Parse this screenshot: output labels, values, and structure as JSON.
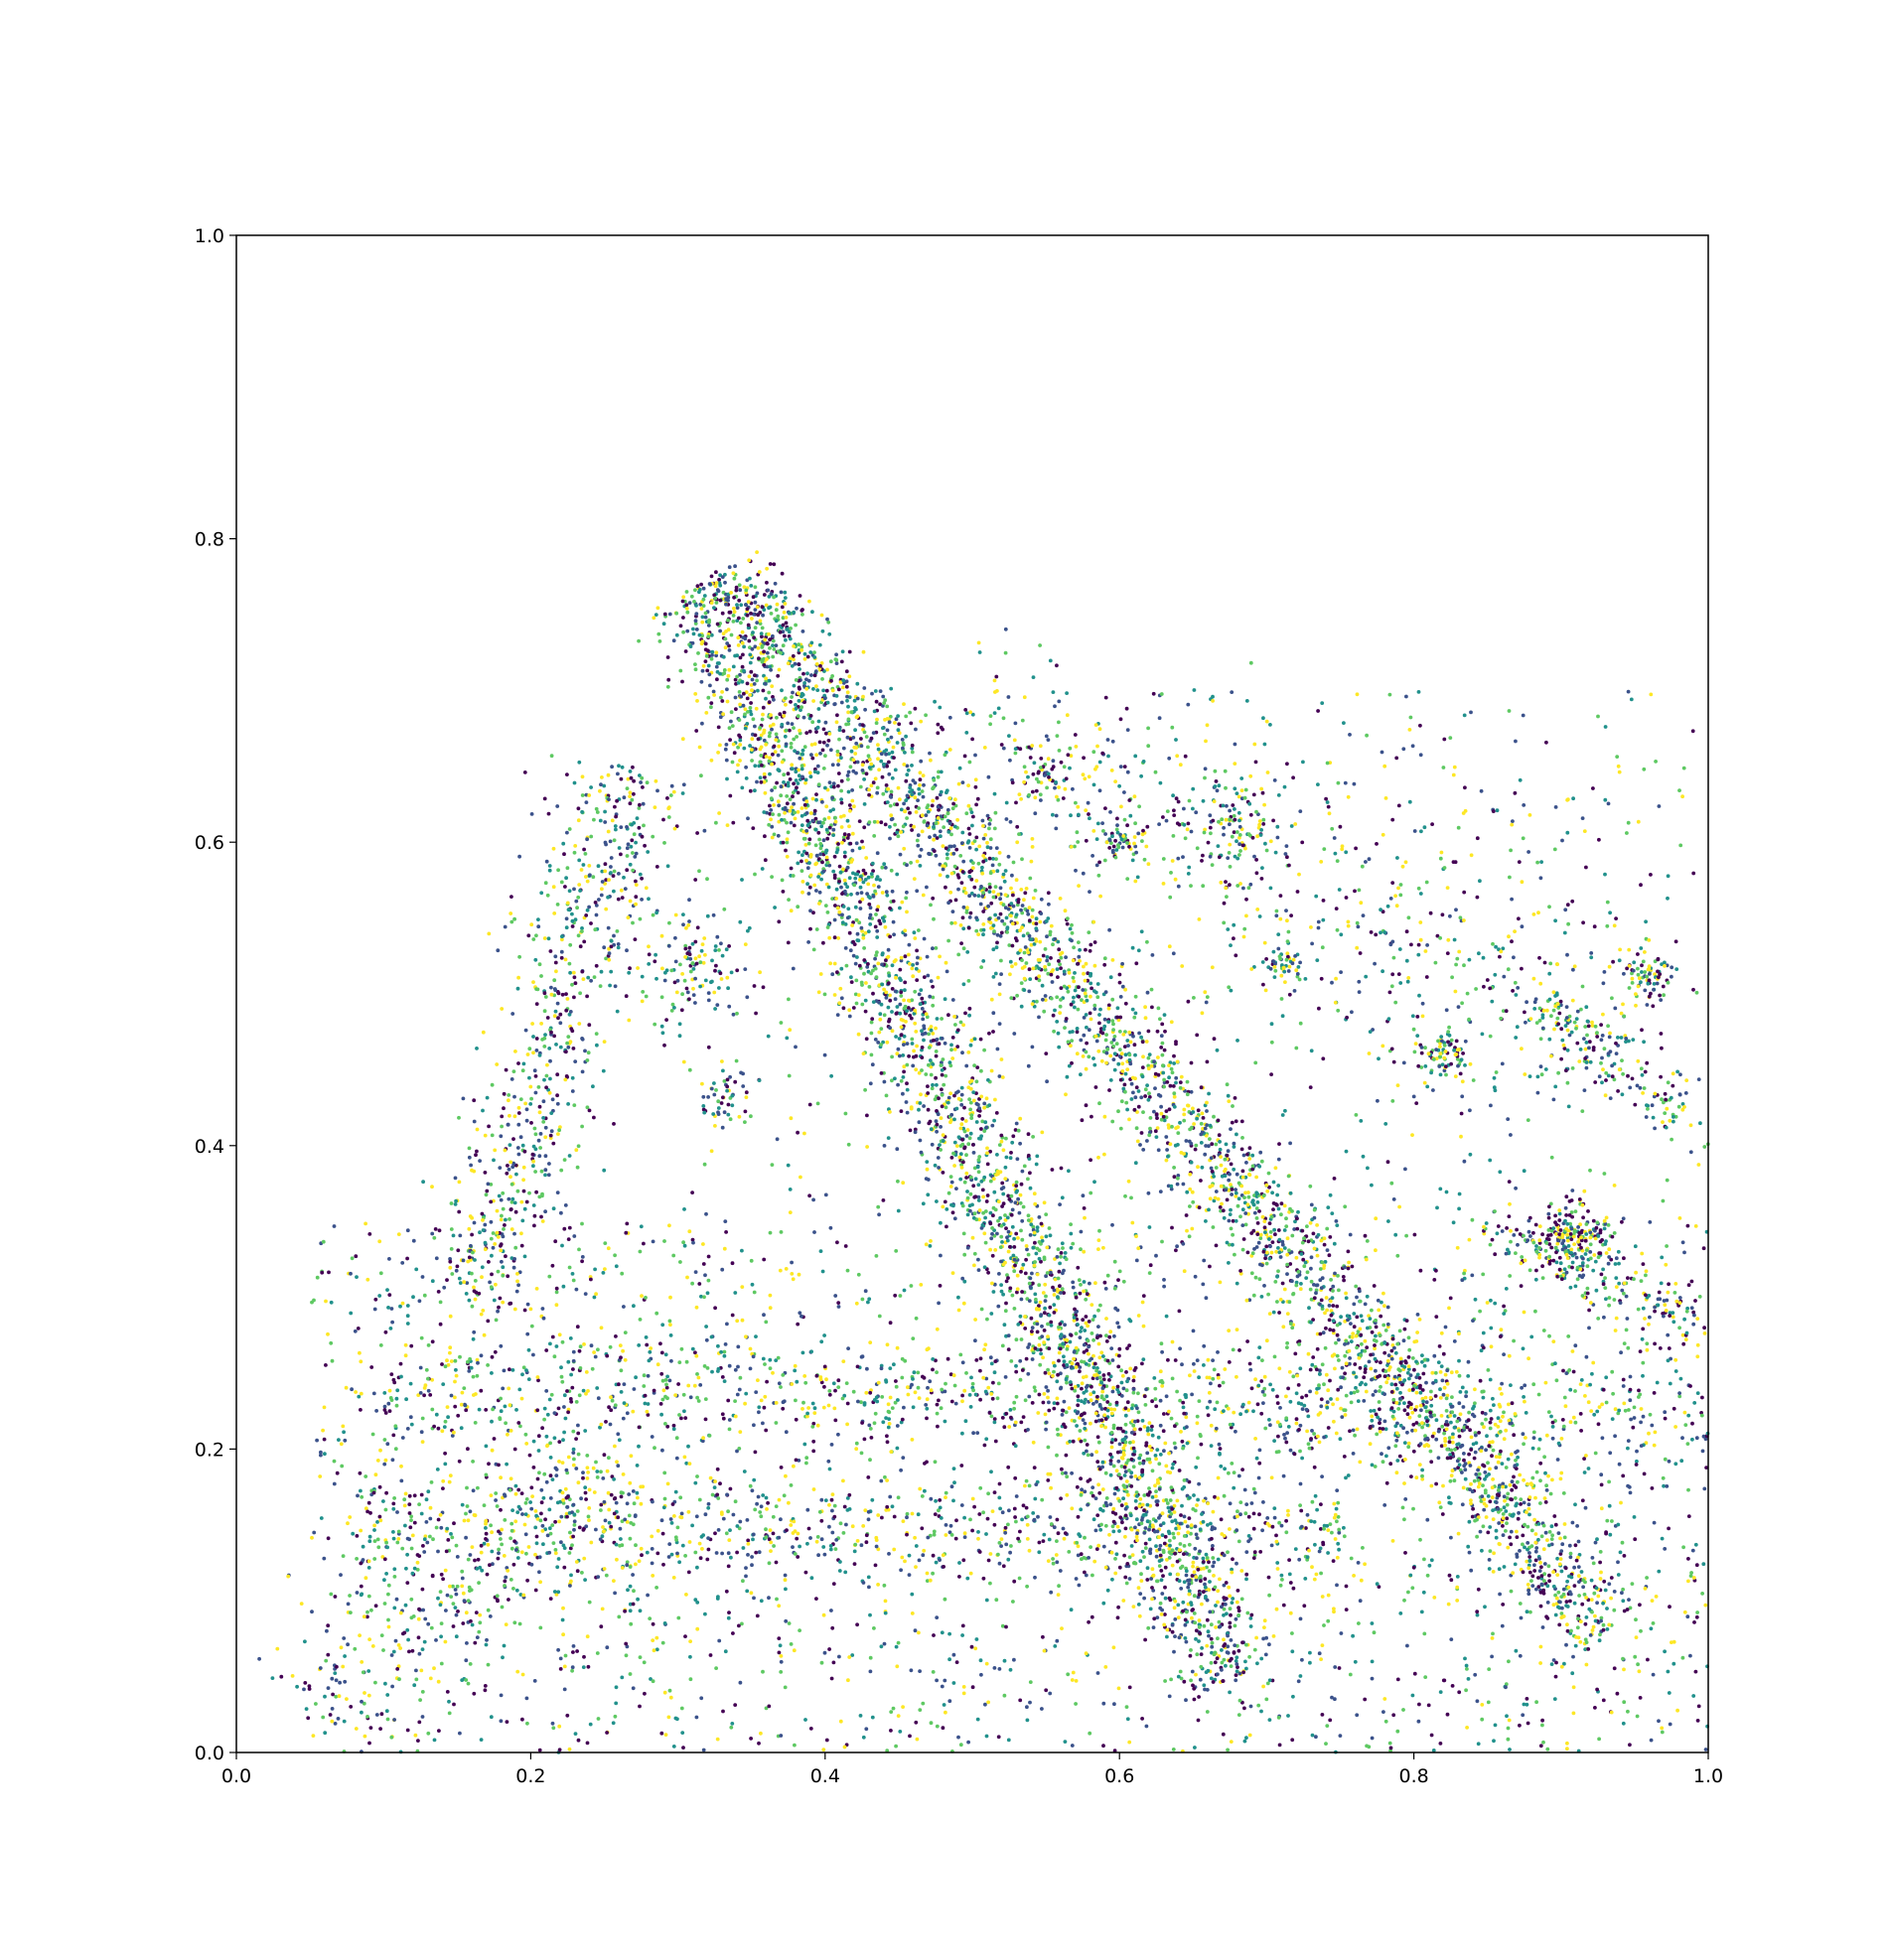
{
  "chart_data": {
    "type": "scatter",
    "title": "",
    "xlabel": "",
    "ylabel": "",
    "xlim": [
      0.0,
      1.0
    ],
    "ylim": [
      0.0,
      1.0
    ],
    "grid": false,
    "legend": "none",
    "xticks": [
      "0.0",
      "0.2",
      "0.4",
      "0.6",
      "0.8",
      "1.0"
    ],
    "yticks": [
      "0.0",
      "0.2",
      "0.4",
      "0.6",
      "0.8",
      "1.0"
    ],
    "colormap": [
      "#440154",
      "#3b528b",
      "#21918c",
      "#5ec962",
      "#fde725"
    ],
    "structures": [
      {
        "kind": "band",
        "from": [
          0.31,
          0.77
        ],
        "to": [
          0.68,
          0.05
        ],
        "spread": 0.018,
        "points": 2600
      },
      {
        "kind": "band",
        "from": [
          0.34,
          0.77
        ],
        "to": [
          0.93,
          0.08
        ],
        "spread": 0.016,
        "points": 2600
      },
      {
        "kind": "band",
        "from": [
          0.16,
          0.3
        ],
        "to": [
          0.27,
          0.65
        ],
        "spread": 0.02,
        "points": 700
      },
      {
        "kind": "band",
        "from": [
          0.1,
          0.25
        ],
        "to": [
          1.0,
          0.22
        ],
        "spread": 0.02,
        "points": 900
      },
      {
        "kind": "band",
        "from": [
          0.08,
          0.15
        ],
        "to": [
          0.75,
          0.15
        ],
        "spread": 0.02,
        "points": 700
      },
      {
        "kind": "band",
        "from": [
          0.05,
          0.02
        ],
        "to": [
          0.25,
          0.2
        ],
        "spread": 0.03,
        "points": 350
      },
      {
        "kind": "band",
        "from": [
          0.48,
          0.68
        ],
        "to": [
          0.95,
          0.47
        ],
        "spread": 0.04,
        "points": 500
      },
      {
        "kind": "band",
        "from": [
          0.85,
          0.35
        ],
        "to": [
          1.0,
          0.28
        ],
        "spread": 0.01,
        "points": 200
      },
      {
        "kind": "band",
        "from": [
          0.88,
          0.5
        ],
        "to": [
          0.98,
          0.42
        ],
        "spread": 0.01,
        "points": 150
      },
      {
        "kind": "cluster",
        "center": [
          0.31,
          0.52
        ],
        "spread": 0.02,
        "points": 120
      },
      {
        "kind": "cluster",
        "center": [
          0.91,
          0.34
        ],
        "spread": 0.012,
        "points": 160
      },
      {
        "kind": "cluster",
        "center": [
          0.82,
          0.46
        ],
        "spread": 0.008,
        "points": 80
      },
      {
        "kind": "cluster",
        "center": [
          0.96,
          0.51
        ],
        "spread": 0.008,
        "points": 70
      },
      {
        "kind": "cluster",
        "center": [
          0.68,
          0.61
        ],
        "spread": 0.015,
        "points": 90
      },
      {
        "kind": "cluster",
        "center": [
          0.6,
          0.6
        ],
        "spread": 0.008,
        "points": 50
      },
      {
        "kind": "cluster",
        "center": [
          0.55,
          0.64
        ],
        "spread": 0.008,
        "points": 50
      },
      {
        "kind": "cluster",
        "center": [
          0.71,
          0.52
        ],
        "spread": 0.006,
        "points": 40
      },
      {
        "kind": "cluster",
        "center": [
          0.33,
          0.43
        ],
        "spread": 0.01,
        "points": 50
      },
      {
        "kind": "scatter",
        "xrange": [
          0.05,
          1.0
        ],
        "yrange": [
          0.0,
          0.35
        ],
        "points": 2200
      },
      {
        "kind": "scatter",
        "xrange": [
          0.3,
          1.0
        ],
        "yrange": [
          0.35,
          0.7
        ],
        "points": 700
      }
    ]
  }
}
